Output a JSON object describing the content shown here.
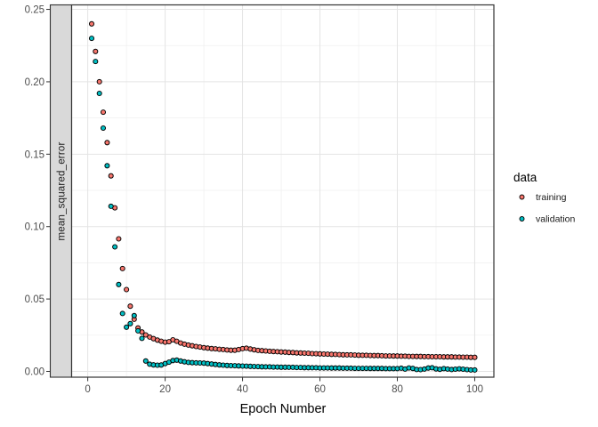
{
  "chart_data": {
    "type": "scatter",
    "title": "",
    "xlabel": "Epoch Number",
    "ylabel": "",
    "strip_label": "mean_squared_error",
    "epochs": {
      "start": 1,
      "end": 100,
      "step": 1
    },
    "x_domain": [
      -4.05,
      104.95
    ],
    "y_domain": [
      -0.004,
      0.2531
    ],
    "x_ticks": [
      {
        "value": 0,
        "label": "0"
      },
      {
        "value": 20,
        "label": "20"
      },
      {
        "value": 40,
        "label": "40"
      },
      {
        "value": 60,
        "label": "60"
      },
      {
        "value": 80,
        "label": "80"
      },
      {
        "value": 100,
        "label": "100"
      }
    ],
    "x_minor": [
      10,
      30,
      50,
      70,
      90
    ],
    "y_ticks": [
      {
        "value": 0.0,
        "label": "0.00"
      },
      {
        "value": 0.05,
        "label": "0.05"
      },
      {
        "value": 0.1,
        "label": "0.10"
      },
      {
        "value": 0.15,
        "label": "0.15"
      },
      {
        "value": 0.2,
        "label": "0.20"
      },
      {
        "value": 0.25,
        "label": "0.25"
      }
    ],
    "y_minor": [
      0.025,
      0.075,
      0.125,
      0.175,
      0.225
    ],
    "grid": true,
    "legend": {
      "title": "data",
      "position": "right",
      "entries": [
        {
          "label": "training",
          "color": "#F8766D"
        },
        {
          "label": "validation",
          "color": "#00BFC4"
        }
      ]
    },
    "series": [
      {
        "name": "training",
        "color": "#F8766D",
        "values": [
          0.24,
          0.221,
          0.2,
          0.179,
          0.158,
          0.135,
          0.113,
          0.0915,
          0.071,
          0.0565,
          0.045,
          0.036,
          0.03,
          0.0272,
          0.0252,
          0.0237,
          0.0226,
          0.0216,
          0.0208,
          0.0202,
          0.0205,
          0.0218,
          0.0208,
          0.0196,
          0.0188,
          0.0182,
          0.0177,
          0.0172,
          0.0168,
          0.0164,
          0.0161,
          0.0158,
          0.0156,
          0.0153,
          0.0151,
          0.0148,
          0.0146,
          0.0146,
          0.0151,
          0.0157,
          0.016,
          0.0155,
          0.0149,
          0.0145,
          0.0143,
          0.0141,
          0.0139,
          0.0137,
          0.0136,
          0.0134,
          0.0133,
          0.0131,
          0.013,
          0.0128,
          0.0127,
          0.0126,
          0.0125,
          0.0123,
          0.0122,
          0.0121,
          0.012,
          0.0119,
          0.0118,
          0.0117,
          0.0116,
          0.0115,
          0.0114,
          0.0114,
          0.0113,
          0.0112,
          0.0111,
          0.0111,
          0.011,
          0.0109,
          0.0109,
          0.0108,
          0.0107,
          0.0107,
          0.0106,
          0.0106,
          0.0105,
          0.0105,
          0.0104,
          0.0104,
          0.0103,
          0.0103,
          0.0102,
          0.0102,
          0.0101,
          0.0101,
          0.0101,
          0.01,
          0.01,
          0.01,
          0.0099,
          0.0099,
          0.0098,
          0.0098,
          0.0097,
          0.0097
        ]
      },
      {
        "name": "validation",
        "color": "#00BFC4",
        "values": [
          0.23,
          0.214,
          0.192,
          0.168,
          0.142,
          0.114,
          0.086,
          0.06,
          0.04,
          0.0305,
          0.033,
          0.0385,
          0.028,
          0.0228,
          0.0072,
          0.005,
          0.0045,
          0.0043,
          0.0044,
          0.0054,
          0.0064,
          0.0075,
          0.0078,
          0.0072,
          0.0066,
          0.0062,
          0.006,
          0.0059,
          0.0058,
          0.0057,
          0.0054,
          0.0051,
          0.0048,
          0.0045,
          0.0043,
          0.0041,
          0.004,
          0.0039,
          0.0038,
          0.0037,
          0.0036,
          0.0035,
          0.0034,
          0.0033,
          0.0032,
          0.0031,
          0.0031,
          0.003,
          0.003,
          0.0029,
          0.0029,
          0.0028,
          0.0028,
          0.0027,
          0.0027,
          0.0026,
          0.0026,
          0.0025,
          0.0025,
          0.0024,
          0.0024,
          0.0024,
          0.0023,
          0.0023,
          0.0023,
          0.0022,
          0.0022,
          0.0022,
          0.0021,
          0.0021,
          0.0021,
          0.0021,
          0.002,
          0.002,
          0.002,
          0.002,
          0.0019,
          0.0019,
          0.0019,
          0.0019,
          0.0022,
          0.0016,
          0.0024,
          0.002,
          0.0013,
          0.0012,
          0.0016,
          0.0023,
          0.0025,
          0.0017,
          0.0014,
          0.0019,
          0.0016,
          0.0013,
          0.0015,
          0.0018,
          0.0015,
          0.0012,
          0.001,
          0.001
        ]
      }
    ],
    "colors": {
      "strip_bg": "#D9D9D9",
      "panel_bg": "#FFFFFF",
      "panel_border": "#333333",
      "grid_major": "#E4E4E4",
      "grid_minor": "#EFEFEF",
      "tick": "#333333",
      "point_stroke": "#000000",
      "axis_text": "#4D4D4D"
    }
  }
}
